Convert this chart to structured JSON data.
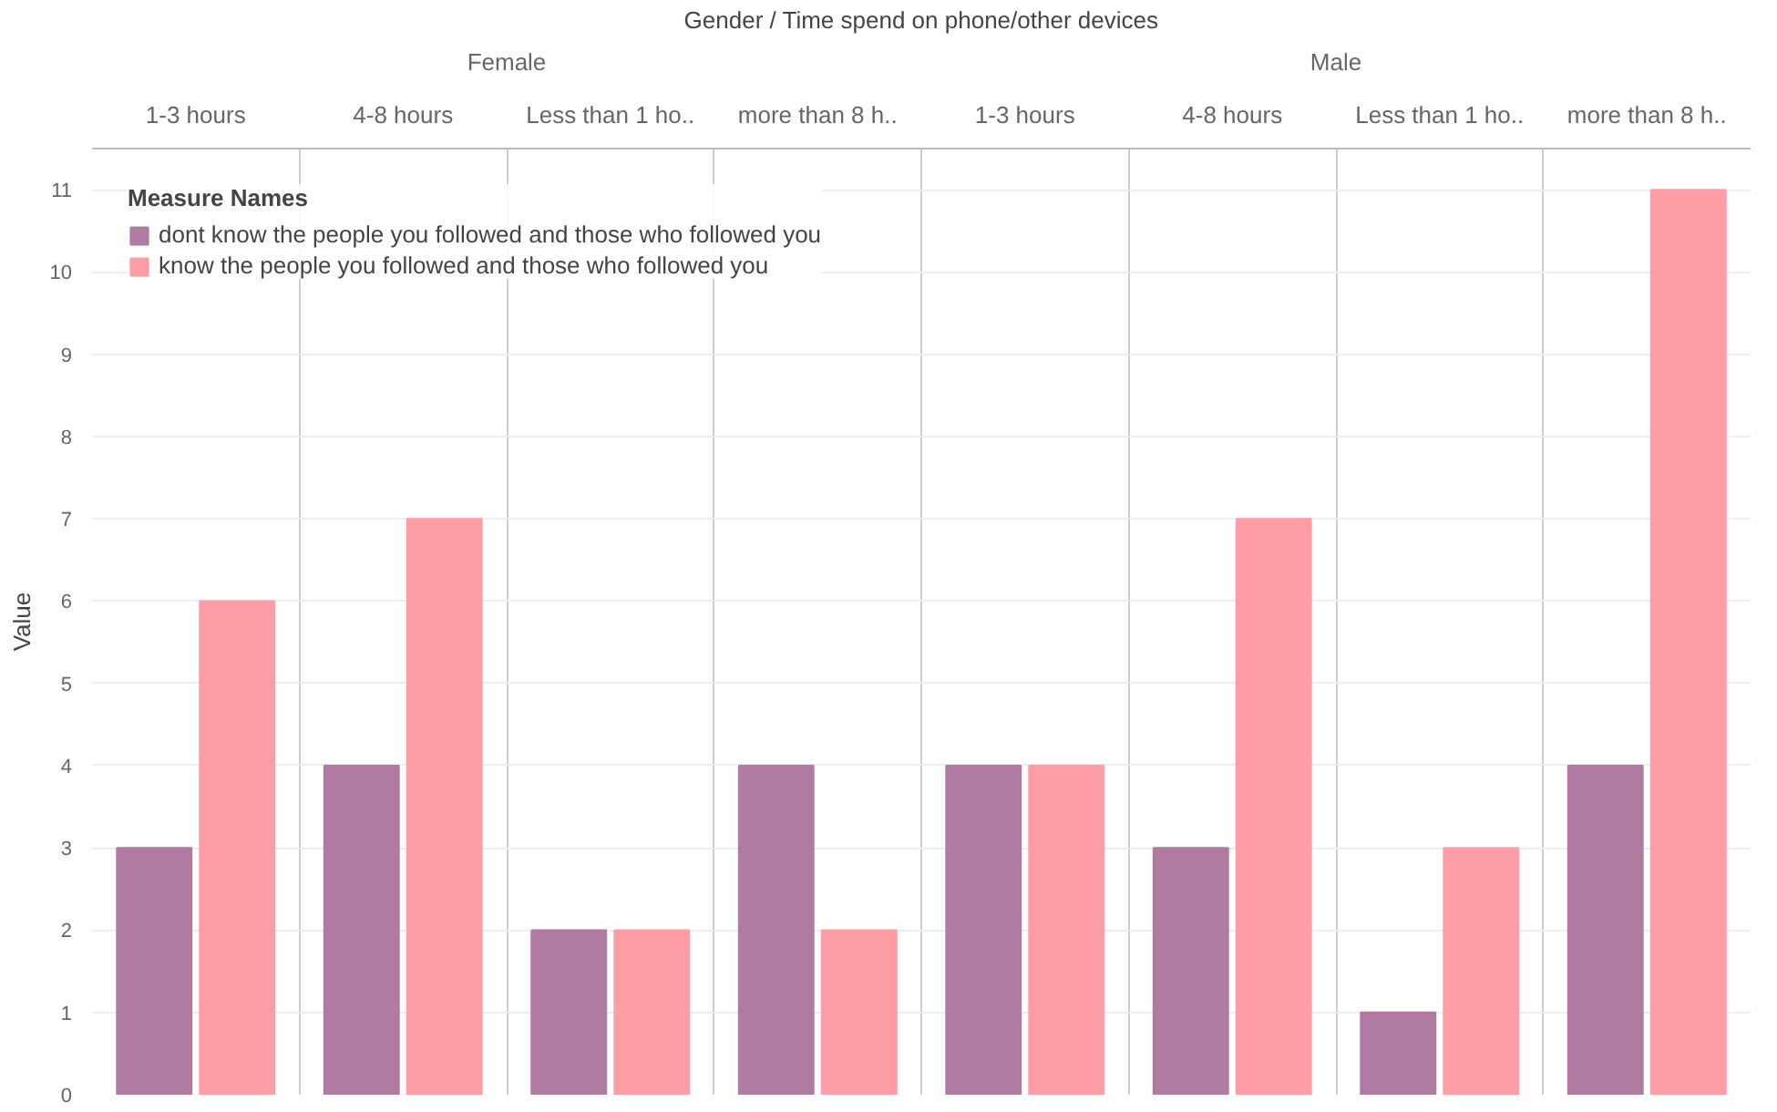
{
  "chart_data": {
    "type": "bar",
    "xlabel": "Gender / Time spend on phone/other devices",
    "ylabel": "Value",
    "legend_title": "Measure Names",
    "categories": [
      "1-3 hours",
      "4-8 hours",
      "Less than 1 ho..",
      "more than 8 h..",
      "1-3 hours",
      "4-8 hours",
      "Less than 1 ho..",
      "more than 8 h.."
    ],
    "annotations": [
      "Female",
      "Male"
    ],
    "series": [
      {
        "name": "dont know the people you followed and those who followed you",
        "color": "#b07aa1",
        "values": [
          3,
          4,
          2,
          4,
          4,
          3,
          1,
          4
        ]
      },
      {
        "name": "know the people you followed and those who followed you",
        "color": "#ff9da7",
        "values": [
          6,
          7,
          2,
          2,
          4,
          7,
          3,
          11
        ]
      }
    ],
    "ylim": [
      0,
      11.5
    ],
    "yticks": [
      0,
      1,
      2,
      3,
      4,
      5,
      6,
      7,
      8,
      9,
      10,
      11
    ],
    "grid": true,
    "legend": "top left"
  }
}
